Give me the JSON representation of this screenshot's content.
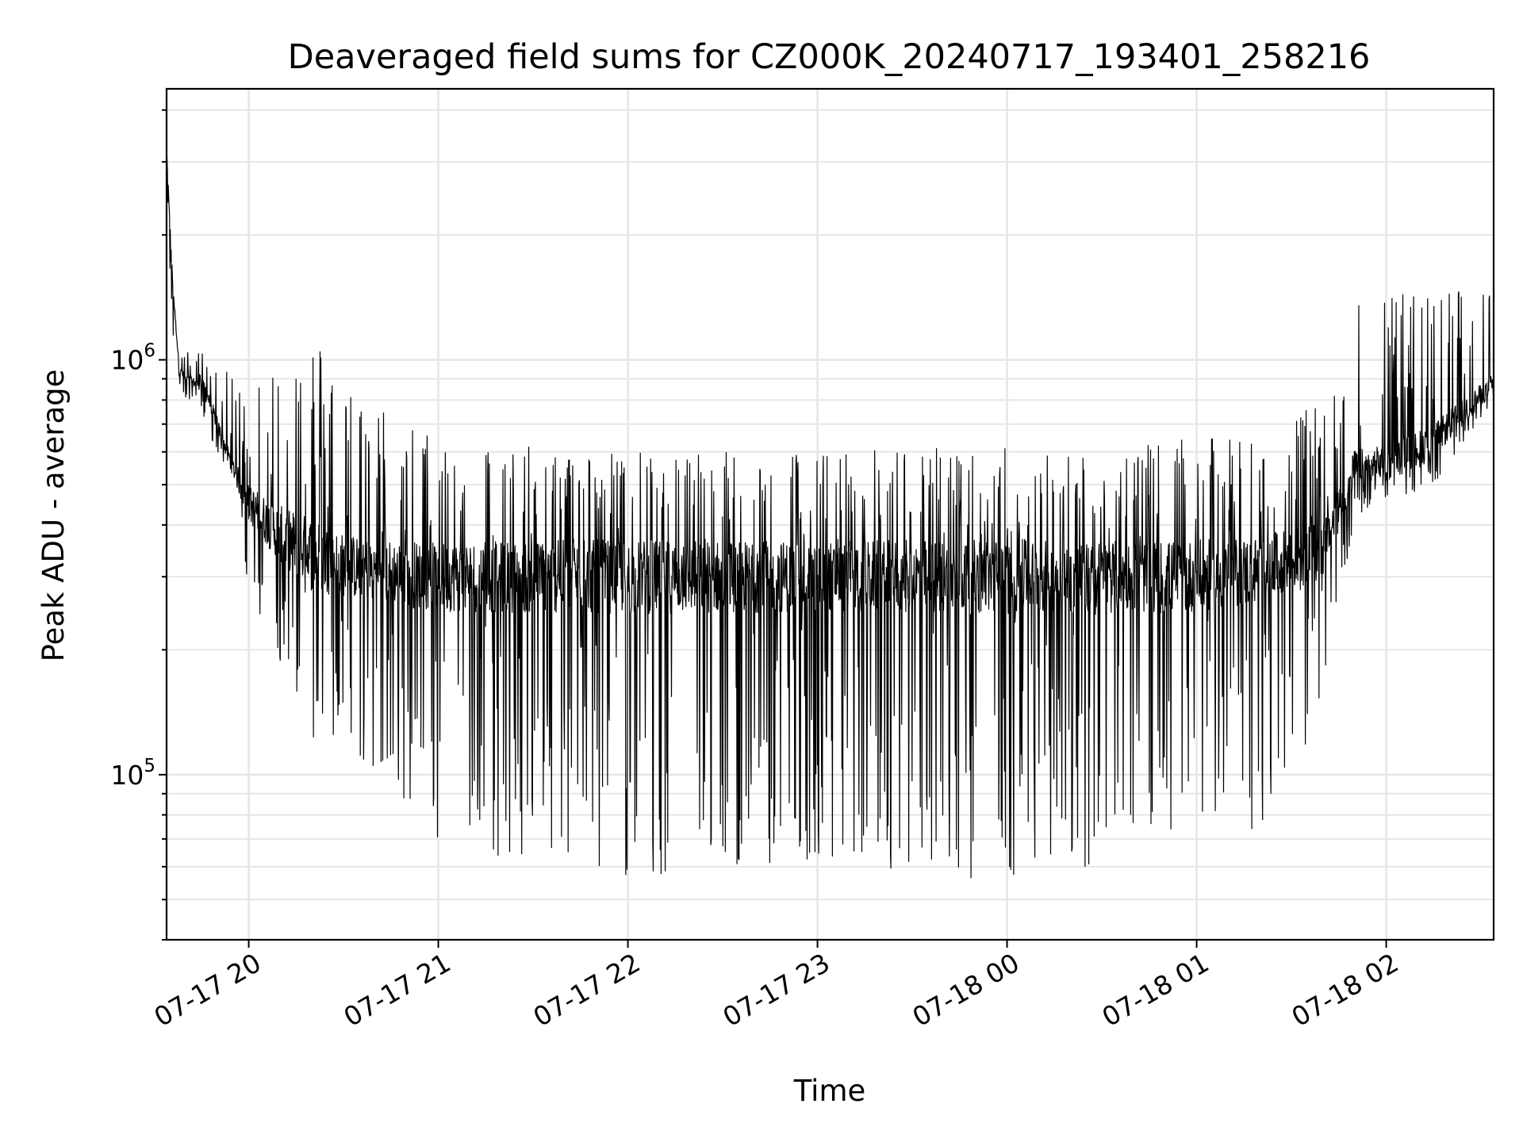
{
  "chart_data": {
    "type": "line",
    "title": "Deaveraged field sums for CZ000K_20240717_193401_258216",
    "xlabel": "Time",
    "ylabel": "Peak ADU - average",
    "yscale": "log",
    "ylim": [
      40000,
      4500000
    ],
    "xlim": [
      "2024-07-17 19:34",
      "2024-07-18 02:34"
    ],
    "x_ticks": [
      {
        "label": "07-17 20",
        "time": "2024-07-17 20:00"
      },
      {
        "label": "07-17 21",
        "time": "2024-07-17 21:00"
      },
      {
        "label": "07-17 22",
        "time": "2024-07-17 22:00"
      },
      {
        "label": "07-17 23",
        "time": "2024-07-17 23:00"
      },
      {
        "label": "07-18 00",
        "time": "2024-07-18 00:00"
      },
      {
        "label": "07-18 01",
        "time": "2024-07-18 01:00"
      },
      {
        "label": "07-18 02",
        "time": "2024-07-18 02:00"
      }
    ],
    "y_ticks": [
      {
        "base": "10",
        "exp": "5",
        "value": 100000
      },
      {
        "base": "10",
        "exp": "6",
        "value": 1000000
      }
    ],
    "grid": true,
    "color": "#000000",
    "series": [
      {
        "x": [
          "2024-07-17 19:34",
          "2024-07-17 19:36",
          "2024-07-17 19:38",
          "2024-07-17 19:40",
          "2024-07-17 19:43",
          "2024-07-17 19:46",
          "2024-07-17 19:50",
          "2024-07-17 19:55",
          "2024-07-17 20:00",
          "2024-07-17 20:10",
          "2024-07-17 20:20",
          "2024-07-17 20:30",
          "2024-07-17 20:40",
          "2024-07-17 21:00",
          "2024-07-17 21:30",
          "2024-07-17 22:00",
          "2024-07-17 22:30",
          "2024-07-17 23:00",
          "2024-07-17 23:30",
          "2024-07-18 00:00",
          "2024-07-18 00:30",
          "2024-07-18 01:00",
          "2024-07-18 01:20",
          "2024-07-18 01:40",
          "2024-07-18 01:50",
          "2024-07-18 02:00",
          "2024-07-18 02:15",
          "2024-07-18 02:34"
        ],
        "baseline": [
          3200000,
          1500000,
          950000,
          900000,
          880000,
          860000,
          700000,
          550000,
          450000,
          380000,
          340000,
          320000,
          310000,
          300000,
          300000,
          300000,
          300000,
          300000,
          300000,
          300000,
          300000,
          300000,
          310000,
          350000,
          550000,
          560000,
          640000,
          880000
        ],
        "upper": [
          3300000,
          1100000,
          1050000,
          1050000,
          1050000,
          1050000,
          1000000,
          900000,
          850000,
          1100000,
          1200000,
          900000,
          800000,
          650000,
          620000,
          600000,
          620000,
          600000,
          620000,
          620000,
          600000,
          650000,
          650000,
          800000,
          1400000,
          1500000,
          1450000,
          1500000
        ],
        "lower": [
          3000000,
          900000,
          800000,
          800000,
          780000,
          700000,
          600000,
          500000,
          260000,
          180000,
          110000,
          120000,
          100000,
          70000,
          60000,
          55000,
          60000,
          62000,
          58000,
          55000,
          60000,
          62000,
          70000,
          140000,
          420000,
          450000,
          500000,
          800000
        ]
      }
    ]
  }
}
